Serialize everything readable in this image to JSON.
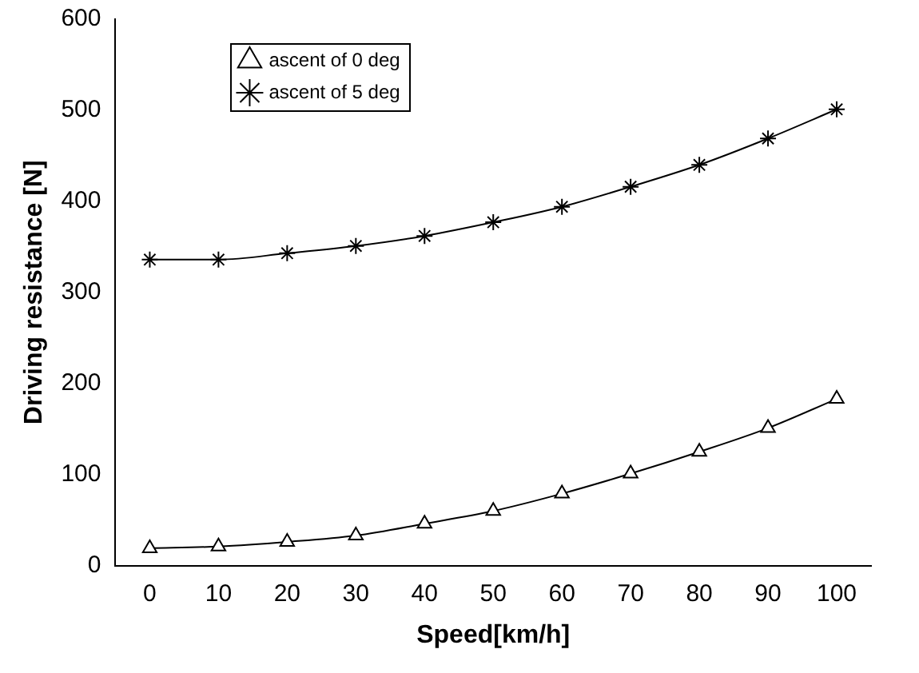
{
  "chart_data": {
    "type": "line",
    "xlabel": "Speed[km/h]",
    "ylabel": "Driving resistance [N]",
    "categories": [
      "0",
      "10",
      "20",
      "30",
      "40",
      "50",
      "60",
      "70",
      "80",
      "90",
      "100"
    ],
    "series": [
      {
        "name": "ascent of 0 deg",
        "color": "#000000",
        "marker": "triangle",
        "values": [
          19,
          21,
          26,
          33,
          46,
          60,
          79,
          101,
          125,
          151,
          183
        ]
      },
      {
        "name": "ascent of 5 deg",
        "color": "#000000",
        "marker": "cross",
        "values": [
          336,
          336,
          343,
          351,
          362,
          377,
          394,
          416,
          440,
          469,
          501
        ]
      }
    ],
    "ylim": [
      0,
      600
    ],
    "yticks": [
      0,
      100,
      200,
      300,
      400,
      500,
      600
    ],
    "grid": false,
    "legend": "top left",
    "line_style": "solid"
  }
}
